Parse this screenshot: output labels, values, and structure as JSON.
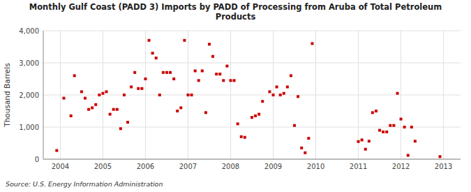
{
  "chart_data": {
    "type": "scatter",
    "title": "Monthly Gulf Coast (PADD 3) Imports by PADD of Processing from Aruba of Total Petroleum\nProducts",
    "ylabel": "Thousand Barrels",
    "source": "Source: U.S. Energy Information Administration",
    "color": "#cc0000",
    "marker": "square",
    "grid": true,
    "xlim": [
      2003.6,
      2013.4
    ],
    "ylim": [
      0,
      4000
    ],
    "xticks": [
      2004,
      2005,
      2006,
      2007,
      2008,
      2009,
      2010,
      2011,
      2012,
      2013
    ],
    "yticks": [
      0,
      {
        "value": 1000,
        "label": "1,000"
      },
      {
        "value": 2000,
        "label": "2,000"
      },
      {
        "value": 3000,
        "label": "3,000"
      },
      {
        "value": 4000,
        "label": "4,000"
      }
    ],
    "x": [
      2003.917,
      2004.083,
      2004.25,
      2004.333,
      2004.5,
      2004.583,
      2004.667,
      2004.75,
      2004.833,
      2004.917,
      2005.0,
      2005.083,
      2005.167,
      2005.25,
      2005.333,
      2005.417,
      2005.5,
      2005.583,
      2005.667,
      2005.75,
      2005.833,
      2005.917,
      2006.0,
      2006.083,
      2006.167,
      2006.25,
      2006.333,
      2006.417,
      2006.5,
      2006.583,
      2006.667,
      2006.75,
      2006.833,
      2006.917,
      2007.0,
      2007.083,
      2007.167,
      2007.25,
      2007.333,
      2007.417,
      2007.5,
      2007.583,
      2007.667,
      2007.75,
      2007.833,
      2007.917,
      2008.0,
      2008.083,
      2008.167,
      2008.25,
      2008.333,
      2008.5,
      2008.583,
      2008.667,
      2008.75,
      2008.917,
      2009.0,
      2009.083,
      2009.167,
      2009.25,
      2009.333,
      2009.417,
      2009.5,
      2009.583,
      2009.667,
      2009.75,
      2009.833,
      2009.917,
      2011.0,
      2011.083,
      2011.167,
      2011.25,
      2011.333,
      2011.417,
      2011.5,
      2011.583,
      2011.667,
      2011.75,
      2011.833,
      2011.917,
      2012.0,
      2012.083,
      2012.167,
      2012.25,
      2012.333,
      2012.917
    ],
    "values": [
      270,
      1900,
      1350,
      2600,
      2100,
      1900,
      1550,
      1600,
      1700,
      2000,
      2050,
      2100,
      1400,
      1550,
      1550,
      950,
      2000,
      1150,
      2250,
      2700,
      2200,
      2200,
      2500,
      3700,
      3300,
      3150,
      2000,
      2700,
      2700,
      2700,
      2500,
      1500,
      1600,
      3700,
      2000,
      2000,
      2750,
      2450,
      2750,
      1450,
      3580,
      3200,
      2650,
      2650,
      2450,
      2900,
      2450,
      2450,
      1100,
      700,
      680,
      1300,
      1350,
      1400,
      1800,
      2100,
      2000,
      2250,
      2000,
      2050,
      2250,
      2600,
      1050,
      1950,
      350,
      200,
      650,
      3600,
      550,
      600,
      310,
      560,
      1450,
      1500,
      900,
      850,
      850,
      1050,
      1050,
      2050,
      1250,
      1000,
      120,
      1000,
      560,
      80
    ]
  }
}
